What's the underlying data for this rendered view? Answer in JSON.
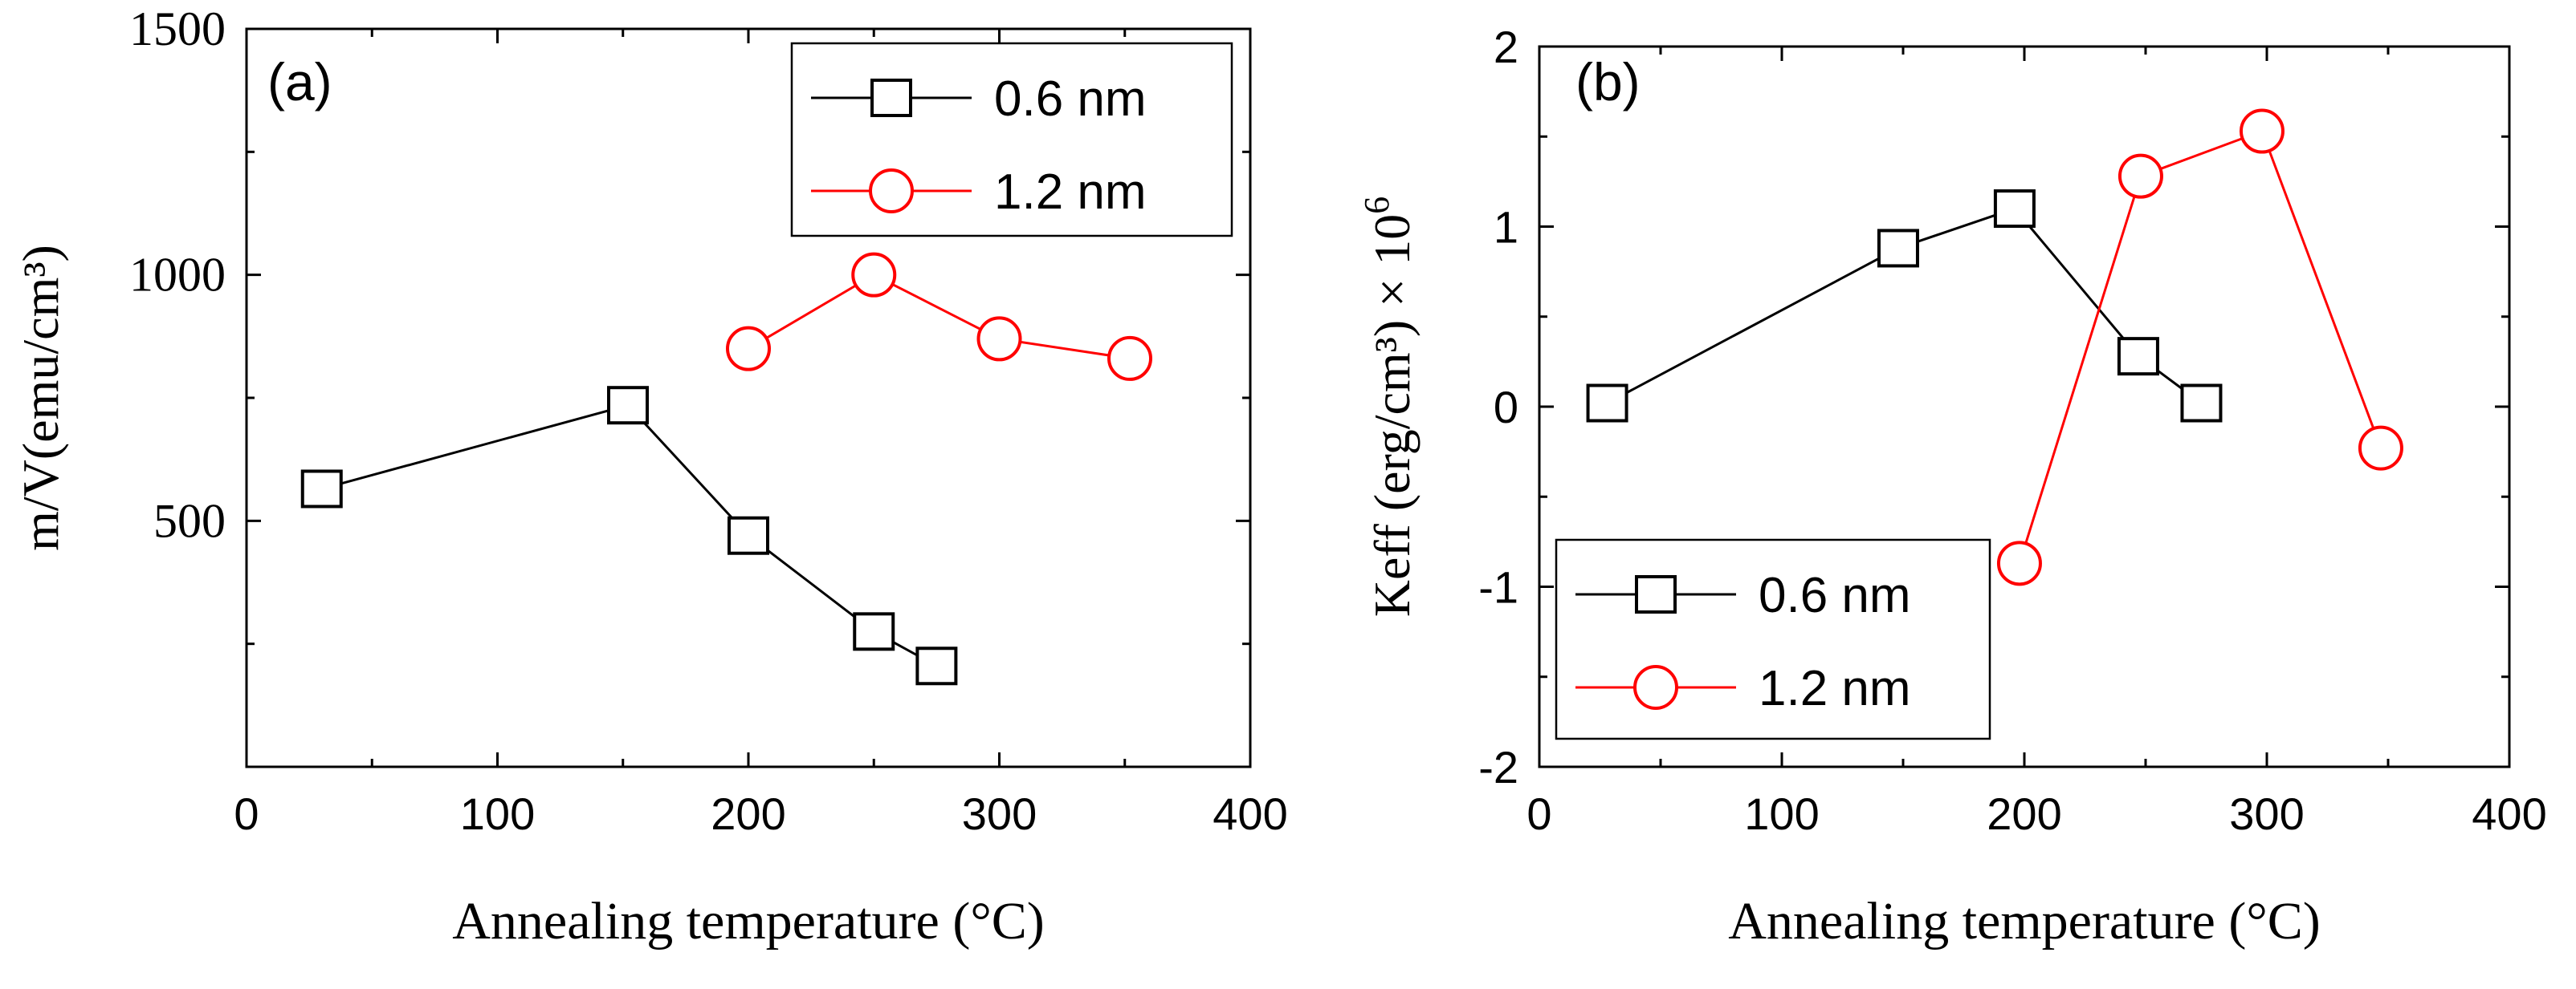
{
  "chart_data": [
    {
      "panel": "(a)",
      "type": "line",
      "xlabel": "Annealing temperature (°C)",
      "ylabel": "m/V(emu/cm³)",
      "xlim": [
        0,
        400
      ],
      "ylim": [
        0,
        1500
      ],
      "xticks": [
        0,
        100,
        200,
        300,
        400
      ],
      "yticks": [
        500,
        1000,
        1500
      ],
      "x_tick_labels": [
        "0",
        "100",
        "200",
        "300",
        "400"
      ],
      "y_tick_labels": [
        "500",
        "1000",
        "1500"
      ],
      "legend_position": "top-right",
      "series": [
        {
          "name": "0.6 nm",
          "marker": "square",
          "color": "#000000",
          "x": [
            30,
            152,
            200,
            250,
            275
          ],
          "y": [
            565,
            735,
            470,
            275,
            205
          ]
        },
        {
          "name": "1.2 nm",
          "marker": "circle",
          "color": "#ff0000",
          "x": [
            200,
            250,
            300,
            352
          ],
          "y": [
            850,
            1000,
            870,
            830
          ]
        }
      ]
    },
    {
      "panel": "(b)",
      "type": "line",
      "xlabel": "Annealing temperature (°C)",
      "ylabel": "Keff (erg/cm³) × 10",
      "ylabel_superscript": "6",
      "xlim": [
        0,
        400
      ],
      "ylim": [
        -2,
        2
      ],
      "xticks": [
        0,
        100,
        200,
        300,
        400
      ],
      "yticks": [
        -2,
        -1,
        0,
        1,
        2
      ],
      "x_tick_labels": [
        "0",
        "100",
        "200",
        "300",
        "400"
      ],
      "y_tick_labels": [
        "-2",
        "-1",
        "0",
        "1",
        "2"
      ],
      "legend_position": "bottom-left",
      "series": [
        {
          "name": "0.6 nm",
          "marker": "square",
          "color": "#000000",
          "x": [
            28,
            148,
            196,
            247,
            273
          ],
          "y": [
            0.02,
            0.88,
            1.1,
            0.28,
            0.02
          ]
        },
        {
          "name": "1.2 nm",
          "marker": "circle",
          "color": "#ff0000",
          "x": [
            198,
            248,
            298,
            347
          ],
          "y": [
            -0.87,
            1.28,
            1.53,
            -0.23
          ]
        }
      ]
    }
  ]
}
